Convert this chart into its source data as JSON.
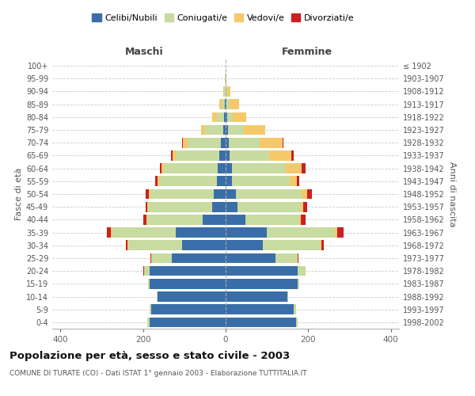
{
  "age_groups": [
    "0-4",
    "5-9",
    "10-14",
    "15-19",
    "20-24",
    "25-29",
    "30-34",
    "35-39",
    "40-44",
    "45-49",
    "50-54",
    "55-59",
    "60-64",
    "65-69",
    "70-74",
    "75-79",
    "80-84",
    "85-89",
    "90-94",
    "95-99",
    "100+"
  ],
  "birth_years": [
    "1998-2002",
    "1993-1997",
    "1988-1992",
    "1983-1987",
    "1978-1982",
    "1973-1977",
    "1968-1972",
    "1963-1967",
    "1958-1962",
    "1953-1957",
    "1948-1952",
    "1943-1947",
    "1938-1942",
    "1933-1937",
    "1928-1932",
    "1923-1927",
    "1918-1922",
    "1913-1917",
    "1908-1912",
    "1903-1907",
    "≤ 1902"
  ],
  "males": {
    "celibi": [
      185,
      180,
      165,
      185,
      185,
      130,
      105,
      120,
      55,
      32,
      28,
      22,
      20,
      15,
      12,
      5,
      3,
      2,
      0,
      0,
      0
    ],
    "coniugati": [
      5,
      5,
      2,
      3,
      12,
      50,
      130,
      155,
      135,
      155,
      155,
      140,
      130,
      105,
      80,
      45,
      18,
      8,
      3,
      1,
      0
    ],
    "vedovi": [
      0,
      0,
      0,
      0,
      0,
      0,
      2,
      3,
      2,
      2,
      3,
      3,
      5,
      8,
      12,
      10,
      12,
      5,
      2,
      0,
      0
    ],
    "divorziati": [
      0,
      0,
      0,
      0,
      2,
      2,
      5,
      10,
      8,
      5,
      8,
      5,
      5,
      5,
      2,
      0,
      0,
      0,
      0,
      0,
      0
    ]
  },
  "females": {
    "nubili": [
      170,
      165,
      150,
      175,
      175,
      120,
      90,
      100,
      48,
      28,
      25,
      15,
      15,
      10,
      8,
      5,
      3,
      2,
      0,
      0,
      0
    ],
    "coniugate": [
      5,
      5,
      2,
      3,
      18,
      55,
      140,
      165,
      130,
      155,
      160,
      140,
      130,
      95,
      75,
      40,
      15,
      8,
      3,
      0,
      0
    ],
    "vedove": [
      0,
      0,
      0,
      0,
      0,
      0,
      3,
      5,
      5,
      5,
      12,
      18,
      40,
      55,
      55,
      50,
      32,
      22,
      8,
      2,
      0
    ],
    "divorziate": [
      0,
      0,
      0,
      0,
      0,
      2,
      5,
      15,
      10,
      10,
      12,
      5,
      8,
      5,
      2,
      0,
      0,
      0,
      0,
      0,
      0
    ]
  },
  "colors": {
    "celibi_nubili": "#3a6ea8",
    "coniugati": "#c8dba0",
    "vedovi": "#f5c96a",
    "divorziati": "#cc2020"
  },
  "title": "Popolazione per età, sesso e stato civile - 2003",
  "subtitle": "COMUNE DI TURATE (CO) - Dati ISTAT 1° gennaio 2003 - Elaborazione TUTTITALIA.IT",
  "xlabel_left": "Maschi",
  "xlabel_right": "Femmine",
  "ylabel_left": "Fasce di età",
  "ylabel_right": "Anni di nascita",
  "xlim": 420,
  "legend_labels": [
    "Celibi/Nubili",
    "Coniugati/e",
    "Vedovi/e",
    "Divorziati/e"
  ],
  "background_color": "#ffffff"
}
